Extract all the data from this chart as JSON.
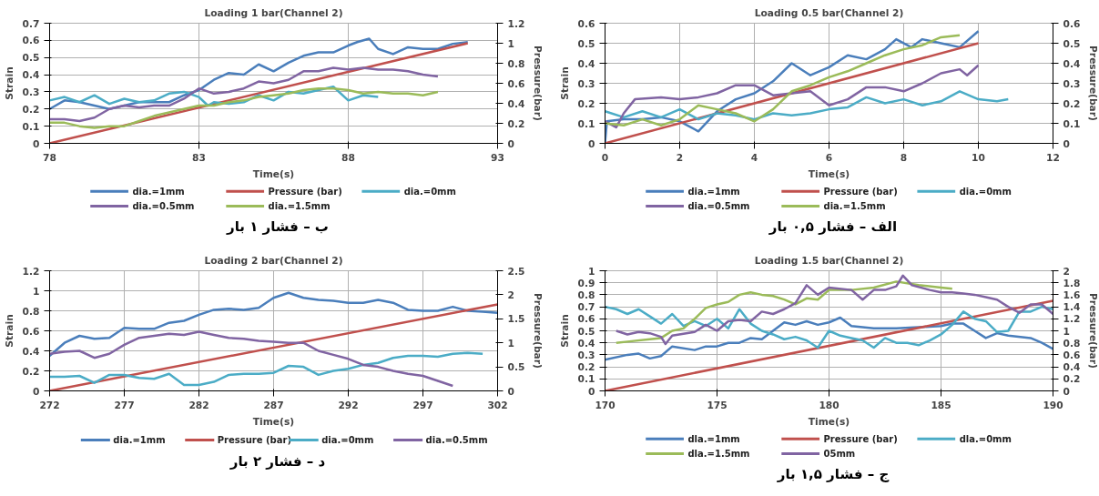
{
  "chart_data": [
    {
      "type": "line",
      "title": "Loading 1 bar(Channel 2)",
      "xlabel": "Time(s)",
      "ylabel": "Strain",
      "y2label": "Pressure(bar)",
      "annotations": [
        "ب – فشار ۱ بار"
      ],
      "xlim": [
        78,
        93
      ],
      "xticks": [
        78,
        83,
        88,
        93
      ],
      "ylim": [
        0,
        0.7
      ],
      "yticks": [
        0,
        0.1,
        0.2,
        0.3,
        0.4,
        0.5,
        0.6,
        0.7
      ],
      "y2lim": [
        0,
        1.2
      ],
      "y2ticks": [
        0,
        0.2,
        0.4,
        0.6,
        0.8,
        1,
        1.2
      ],
      "grid": true,
      "legend": "bottom",
      "series": [
        {
          "name": "dia.=1mm",
          "color": "#4a7ebb",
          "x": [
            78,
            78.5,
            79,
            80,
            81,
            82,
            82.5,
            83,
            83.5,
            84,
            84.5,
            85,
            85.5,
            86,
            86.5,
            87,
            87.5,
            88,
            88.3,
            88.7,
            89,
            89.5,
            90,
            90.5,
            91,
            91.5,
            92
          ],
          "values": [
            0.2,
            0.25,
            0.24,
            0.2,
            0.24,
            0.24,
            0.28,
            0.31,
            0.37,
            0.41,
            0.4,
            0.46,
            0.42,
            0.47,
            0.51,
            0.53,
            0.53,
            0.57,
            0.59,
            0.61,
            0.55,
            0.52,
            0.56,
            0.55,
            0.55,
            0.58,
            0.59
          ]
        },
        {
          "name": "Pressure (bar)",
          "color": "#c0504d",
          "axis": "y2",
          "x": [
            78,
            92
          ],
          "values": [
            0,
            1.0
          ]
        },
        {
          "name": "dia.=0mm",
          "color": "#4bacc6",
          "x": [
            78,
            78.5,
            79,
            79.5,
            80,
            80.5,
            81,
            81.5,
            82,
            82.5,
            83,
            83.3,
            83.5,
            84,
            84.5,
            85,
            85.5,
            86,
            86.5,
            87,
            87.5,
            88,
            88.5,
            89
          ],
          "values": [
            0.25,
            0.27,
            0.24,
            0.28,
            0.23,
            0.26,
            0.24,
            0.25,
            0.29,
            0.3,
            0.27,
            0.22,
            0.24,
            0.23,
            0.24,
            0.28,
            0.25,
            0.3,
            0.29,
            0.31,
            0.33,
            0.25,
            0.28,
            0.27
          ]
        },
        {
          "name": "dia.=0.5mm",
          "color": "#8064a2",
          "x": [
            78,
            78.5,
            79,
            79.5,
            80,
            80.5,
            81,
            81.5,
            82,
            82.5,
            83,
            83.5,
            84,
            84.5,
            85,
            85.5,
            86,
            86.5,
            87,
            87.5,
            88,
            88.5,
            89,
            89.5,
            90,
            90.5,
            91
          ],
          "values": [
            0.14,
            0.14,
            0.13,
            0.15,
            0.2,
            0.22,
            0.21,
            0.22,
            0.22,
            0.26,
            0.32,
            0.29,
            0.3,
            0.32,
            0.36,
            0.35,
            0.37,
            0.42,
            0.42,
            0.44,
            0.43,
            0.44,
            0.43,
            0.43,
            0.42,
            0.4,
            0.39
          ]
        },
        {
          "name": "dia.=1.5mm",
          "color": "#9bbb59",
          "x": [
            78,
            78.5,
            79,
            79.5,
            80,
            80.5,
            81,
            81.5,
            82,
            82.5,
            83,
            83.5,
            84,
            84.5,
            85,
            85.5,
            86,
            86.5,
            87,
            87.5,
            88,
            88.5,
            89,
            89.5,
            90,
            90.5,
            91
          ],
          "values": [
            0.12,
            0.12,
            0.1,
            0.09,
            0.1,
            0.1,
            0.13,
            0.16,
            0.18,
            0.2,
            0.22,
            0.22,
            0.24,
            0.25,
            0.27,
            0.28,
            0.29,
            0.31,
            0.32,
            0.32,
            0.31,
            0.29,
            0.3,
            0.29,
            0.29,
            0.28,
            0.3
          ]
        }
      ]
    },
    {
      "type": "line",
      "title": "Loading 0.5 bar(Channel 2)",
      "xlabel": "Time(s)",
      "ylabel": "Strain",
      "y2label": "Pressure(bar)",
      "annotations": [
        "الف – فشار ۰,۵ بار"
      ],
      "xlim": [
        0,
        12
      ],
      "xticks": [
        0,
        2,
        4,
        6,
        8,
        10,
        12
      ],
      "ylim": [
        0,
        0.6
      ],
      "yticks": [
        0,
        0.1,
        0.2,
        0.3,
        0.4,
        0.5,
        0.6
      ],
      "y2lim": [
        0,
        0.6
      ],
      "y2ticks": [
        0,
        0.1,
        0.2,
        0.3,
        0.4,
        0.5,
        0.6
      ],
      "grid": true,
      "legend": "bottom",
      "series": [
        {
          "name": "dia.=1mm",
          "color": "#4a7ebb",
          "x": [
            0,
            0.05,
            0.5,
            1,
            1.5,
            2,
            2.5,
            3,
            3.5,
            4,
            4.5,
            5,
            5.5,
            6,
            6.5,
            7,
            7.5,
            7.8,
            8.2,
            8.5,
            9,
            9.5,
            10
          ],
          "values": [
            0,
            0.11,
            0.12,
            0.12,
            0.13,
            0.11,
            0.06,
            0.16,
            0.22,
            0.25,
            0.31,
            0.4,
            0.34,
            0.38,
            0.44,
            0.42,
            0.47,
            0.52,
            0.48,
            0.52,
            0.5,
            0.48,
            0.56
          ]
        },
        {
          "name": "Pressure (bar)",
          "color": "#c0504d",
          "axis": "y2",
          "x": [
            0,
            10
          ],
          "values": [
            0,
            0.5
          ]
        },
        {
          "name": "dia.=0mm",
          "color": "#4bacc6",
          "x": [
            0,
            0.5,
            1,
            1.5,
            2,
            2.5,
            3,
            3.5,
            4,
            4.5,
            5,
            5.5,
            6,
            6.5,
            7,
            7.5,
            8,
            8.5,
            9,
            9.5,
            10,
            10.5,
            10.8
          ],
          "values": [
            0.16,
            0.13,
            0.16,
            0.13,
            0.17,
            0.12,
            0.15,
            0.14,
            0.12,
            0.15,
            0.14,
            0.15,
            0.17,
            0.18,
            0.23,
            0.2,
            0.22,
            0.19,
            0.21,
            0.26,
            0.22,
            0.21,
            0.22
          ]
        },
        {
          "name": "dia.=0.5mm",
          "color": "#8064a2",
          "x": [
            0,
            0.3,
            0.5,
            0.8,
            1.5,
            2,
            2.5,
            3,
            3.5,
            4,
            4.5,
            5,
            5.5,
            6,
            6.5,
            7,
            7.5,
            8,
            8.5,
            9,
            9.5,
            9.7,
            10
          ],
          "values": [
            0.11,
            0.08,
            0.15,
            0.22,
            0.23,
            0.22,
            0.23,
            0.25,
            0.29,
            0.29,
            0.24,
            0.25,
            0.26,
            0.19,
            0.22,
            0.28,
            0.28,
            0.26,
            0.3,
            0.35,
            0.37,
            0.34,
            0.39
          ]
        },
        {
          "name": "dia.=1.5mm",
          "color": "#9bbb59",
          "x": [
            0,
            0.5,
            1,
            1.5,
            2,
            2.5,
            3,
            3.5,
            4,
            4.5,
            5,
            5.5,
            6,
            6.5,
            7,
            7.5,
            8,
            8.5,
            9,
            9.5
          ],
          "values": [
            0.1,
            0.09,
            0.12,
            0.09,
            0.12,
            0.19,
            0.17,
            0.15,
            0.11,
            0.17,
            0.26,
            0.29,
            0.33,
            0.36,
            0.4,
            0.44,
            0.47,
            0.49,
            0.53,
            0.54
          ]
        }
      ]
    },
    {
      "type": "line",
      "title": "Loading 2 bar(Channel 2)",
      "xlabel": "Time(s)",
      "ylabel": "Strain",
      "y2label": "Pressure(bar)",
      "annotations": [
        "د – فشار ۲ بار"
      ],
      "xlim": [
        272,
        302
      ],
      "xticks": [
        272,
        277,
        282,
        287,
        292,
        297,
        302
      ],
      "ylim": [
        0,
        1.2
      ],
      "yticks": [
        0,
        0.2,
        0.4,
        0.6,
        0.8,
        1,
        1.2
      ],
      "y2lim": [
        0,
        2.5
      ],
      "y2ticks": [
        0,
        0.5,
        1,
        1.5,
        2,
        2.5
      ],
      "grid": true,
      "legend": "bottom",
      "series": [
        {
          "name": "dia.=1mm",
          "color": "#4a7ebb",
          "x": [
            272,
            273,
            274,
            275,
            276,
            277,
            278,
            279,
            280,
            281,
            282,
            283,
            284,
            285,
            286,
            287,
            288,
            289,
            290,
            291,
            292,
            293,
            294,
            295,
            296,
            297,
            298,
            299,
            300,
            301,
            302
          ],
          "values": [
            0.35,
            0.48,
            0.55,
            0.52,
            0.53,
            0.63,
            0.62,
            0.62,
            0.68,
            0.7,
            0.76,
            0.81,
            0.82,
            0.81,
            0.83,
            0.93,
            0.98,
            0.93,
            0.91,
            0.9,
            0.88,
            0.88,
            0.91,
            0.88,
            0.81,
            0.8,
            0.8,
            0.84,
            0.8,
            0.79,
            0.78
          ]
        },
        {
          "name": "Pressure (bar)",
          "color": "#c0504d",
          "axis": "y2",
          "x": [
            272,
            302
          ],
          "values": [
            0,
            1.8
          ]
        },
        {
          "name": "dia.=0mm",
          "color": "#4bacc6",
          "x": [
            272,
            273,
            274,
            275,
            276,
            277,
            278,
            279,
            280,
            281,
            282,
            283,
            284,
            285,
            286,
            287,
            288,
            289,
            290,
            291,
            292,
            293,
            294,
            295,
            296,
            297,
            298,
            299,
            300,
            301
          ],
          "values": [
            0.14,
            0.14,
            0.15,
            0.08,
            0.16,
            0.16,
            0.13,
            0.12,
            0.17,
            0.06,
            0.06,
            0.09,
            0.16,
            0.17,
            0.17,
            0.18,
            0.25,
            0.24,
            0.16,
            0.2,
            0.22,
            0.26,
            0.28,
            0.33,
            0.35,
            0.35,
            0.34,
            0.37,
            0.38,
            0.37
          ]
        },
        {
          "name": "dia.=0.5mm",
          "color": "#8064a2",
          "x": [
            272,
            273,
            274,
            275,
            276,
            277,
            278,
            279,
            280,
            281,
            282,
            283,
            284,
            285,
            286,
            287,
            288,
            289,
            290,
            291,
            292,
            293,
            294,
            295,
            296,
            297,
            298,
            299
          ],
          "values": [
            0.37,
            0.39,
            0.4,
            0.33,
            0.37,
            0.46,
            0.53,
            0.55,
            0.57,
            0.56,
            0.59,
            0.56,
            0.53,
            0.52,
            0.5,
            0.49,
            0.48,
            0.48,
            0.4,
            0.36,
            0.32,
            0.26,
            0.24,
            0.2,
            0.17,
            0.15,
            0.1,
            0.05
          ]
        }
      ]
    },
    {
      "type": "line",
      "title": "Loading 1.5 bar(Channel 2)",
      "xlabel": "Time(s)",
      "ylabel": "Strain",
      "y2label": "Pressure(bar)",
      "annotations": [
        "ج – فشار ۱,۵ بار"
      ],
      "xlim": [
        170,
        190
      ],
      "xticks": [
        170,
        175,
        180,
        185,
        190
      ],
      "ylim": [
        0,
        1
      ],
      "yticks": [
        0,
        0.1,
        0.2,
        0.3,
        0.4,
        0.5,
        0.6,
        0.7,
        0.8,
        0.9,
        1
      ],
      "y2lim": [
        0,
        2
      ],
      "y2ticks": [
        0,
        0.2,
        0.4,
        0.6,
        0.8,
        1,
        1.2,
        1.4,
        1.6,
        1.8,
        2
      ],
      "grid": true,
      "legend": "bottom",
      "series": [
        {
          "name": "dla.=1mm",
          "color": "#4a7ebb",
          "x": [
            170,
            171,
            171.5,
            172,
            172.5,
            173,
            174,
            174.5,
            175,
            175.5,
            176,
            176.5,
            177,
            177.5,
            178,
            178.5,
            179,
            179.5,
            180,
            180.5,
            181,
            181.5,
            182,
            183,
            184,
            185,
            185.5,
            186,
            186.5,
            187,
            187.5,
            188,
            189,
            189.5,
            190
          ],
          "values": [
            0.26,
            0.3,
            0.31,
            0.27,
            0.29,
            0.37,
            0.34,
            0.37,
            0.37,
            0.4,
            0.4,
            0.44,
            0.43,
            0.5,
            0.57,
            0.55,
            0.58,
            0.55,
            0.57,
            0.61,
            0.54,
            0.53,
            0.52,
            0.52,
            0.53,
            0.54,
            0.56,
            0.56,
            0.5,
            0.44,
            0.48,
            0.46,
            0.44,
            0.4,
            0.35
          ]
        },
        {
          "name": "Pressure (bar)",
          "color": "#c0504d",
          "axis": "y2",
          "x": [
            170,
            190
          ],
          "values": [
            0,
            1.5
          ]
        },
        {
          "name": "dla.=0mm",
          "color": "#4bacc6",
          "x": [
            170,
            170.5,
            171,
            171.5,
            172,
            172.5,
            173,
            173.5,
            174,
            174.5,
            175,
            175.5,
            176,
            176.5,
            177,
            177.5,
            178,
            178.5,
            179,
            179.5,
            180,
            180.5,
            181,
            181.5,
            182,
            182.5,
            183,
            183.5,
            184,
            184.5,
            185,
            185.5,
            186,
            186.5,
            187,
            187.5,
            188,
            188.5,
            189,
            189.5,
            190
          ],
          "values": [
            0.7,
            0.68,
            0.64,
            0.68,
            0.62,
            0.56,
            0.64,
            0.54,
            0.58,
            0.54,
            0.6,
            0.52,
            0.68,
            0.56,
            0.5,
            0.47,
            0.43,
            0.45,
            0.42,
            0.36,
            0.5,
            0.46,
            0.44,
            0.42,
            0.36,
            0.44,
            0.4,
            0.4,
            0.38,
            0.42,
            0.47,
            0.55,
            0.66,
            0.6,
            0.58,
            0.49,
            0.5,
            0.66,
            0.66,
            0.7,
            0.68
          ]
        },
        {
          "name": "dla.=1.5mm",
          "color": "#9bbb59",
          "x": [
            170.5,
            171,
            172,
            172.5,
            173,
            173.5,
            174,
            174.5,
            175,
            175.5,
            176,
            176.5,
            177,
            177.5,
            178,
            178.5,
            179,
            179.5,
            180,
            181,
            182,
            183,
            184,
            185,
            185.5
          ],
          "values": [
            0.4,
            0.41,
            0.43,
            0.44,
            0.5,
            0.52,
            0.6,
            0.69,
            0.72,
            0.74,
            0.8,
            0.82,
            0.8,
            0.79,
            0.76,
            0.72,
            0.77,
            0.76,
            0.84,
            0.84,
            0.86,
            0.91,
            0.88,
            0.86,
            0.85
          ]
        },
        {
          "name": "05mm",
          "color": "#8064a2",
          "x": [
            170.5,
            171,
            171.5,
            172,
            172.5,
            172.7,
            173,
            174,
            174.5,
            175,
            175.5,
            176,
            176.5,
            177,
            177.5,
            178,
            178.5,
            179,
            179.5,
            180,
            181,
            181.5,
            182,
            182.5,
            183,
            183.3,
            183.7,
            184.5,
            185,
            185.5,
            186,
            186.5,
            187,
            187.5,
            188,
            188.5,
            189,
            189.5,
            190
          ],
          "values": [
            0.5,
            0.47,
            0.49,
            0.48,
            0.45,
            0.39,
            0.46,
            0.49,
            0.55,
            0.5,
            0.58,
            0.59,
            0.58,
            0.66,
            0.64,
            0.68,
            0.73,
            0.88,
            0.8,
            0.86,
            0.84,
            0.76,
            0.84,
            0.84,
            0.87,
            0.96,
            0.88,
            0.84,
            0.82,
            0.82,
            0.81,
            0.8,
            0.78,
            0.76,
            0.7,
            0.65,
            0.72,
            0.72,
            0.64
          ]
        }
      ]
    }
  ]
}
